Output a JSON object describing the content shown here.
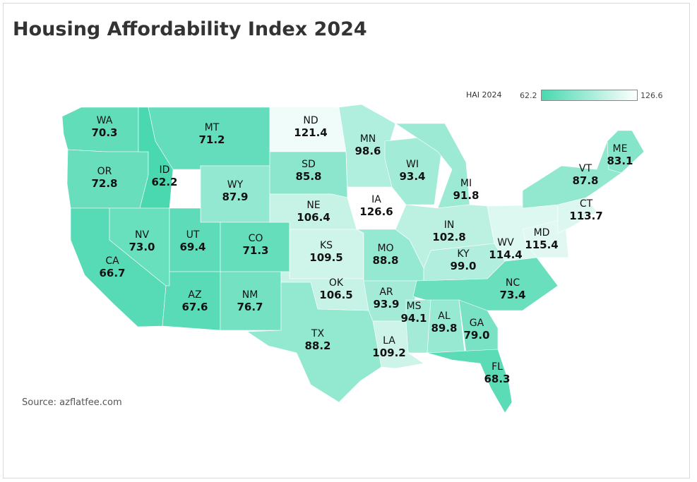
{
  "title": "Housing Affordability Index 2024",
  "source": "Source: azflatfee.com",
  "legend": {
    "title": "HAI 2024",
    "min_label": "62.2",
    "max_label": "126.6",
    "min": 62.2,
    "max": 126.6,
    "color_low": "#4ad8b0",
    "color_high": "#ffffff"
  },
  "states": [
    {
      "id": "WA",
      "value": 70.3
    },
    {
      "id": "OR",
      "value": 72.8
    },
    {
      "id": "CA",
      "value": 66.7
    },
    {
      "id": "ID",
      "value": 62.2
    },
    {
      "id": "NV",
      "value": 73.0
    },
    {
      "id": "MT",
      "value": 71.2
    },
    {
      "id": "WY",
      "value": 87.9
    },
    {
      "id": "UT",
      "value": 69.4
    },
    {
      "id": "AZ",
      "value": 67.6
    },
    {
      "id": "CO",
      "value": 71.3
    },
    {
      "id": "NM",
      "value": 76.7
    },
    {
      "id": "ND",
      "value": 121.4
    },
    {
      "id": "SD",
      "value": 85.8
    },
    {
      "id": "NE",
      "value": 106.4
    },
    {
      "id": "KS",
      "value": 109.5
    },
    {
      "id": "OK",
      "value": 106.5
    },
    {
      "id": "TX",
      "value": 88.2
    },
    {
      "id": "MN",
      "value": 98.6
    },
    {
      "id": "IA",
      "value": 126.6
    },
    {
      "id": "MO",
      "value": 88.8
    },
    {
      "id": "AR",
      "value": 93.9
    },
    {
      "id": "LA",
      "value": 109.2
    },
    {
      "id": "WI",
      "value": 93.4
    },
    {
      "id": "MI",
      "value": 91.8
    },
    {
      "id": "IN",
      "value": 102.8
    },
    {
      "id": "KY",
      "value": 99.0
    },
    {
      "id": "MS",
      "value": 94.1
    },
    {
      "id": "AL",
      "value": 89.8
    },
    {
      "id": "GA",
      "value": 79.0
    },
    {
      "id": "FL",
      "value": 68.3
    },
    {
      "id": "NC",
      "value": 73.4
    },
    {
      "id": "WV",
      "value": 114.4
    },
    {
      "id": "MD",
      "value": 115.4
    },
    {
      "id": "CT",
      "value": 113.7
    },
    {
      "id": "VT",
      "value": 87.8
    },
    {
      "id": "ME",
      "value": 83.1
    }
  ]
}
